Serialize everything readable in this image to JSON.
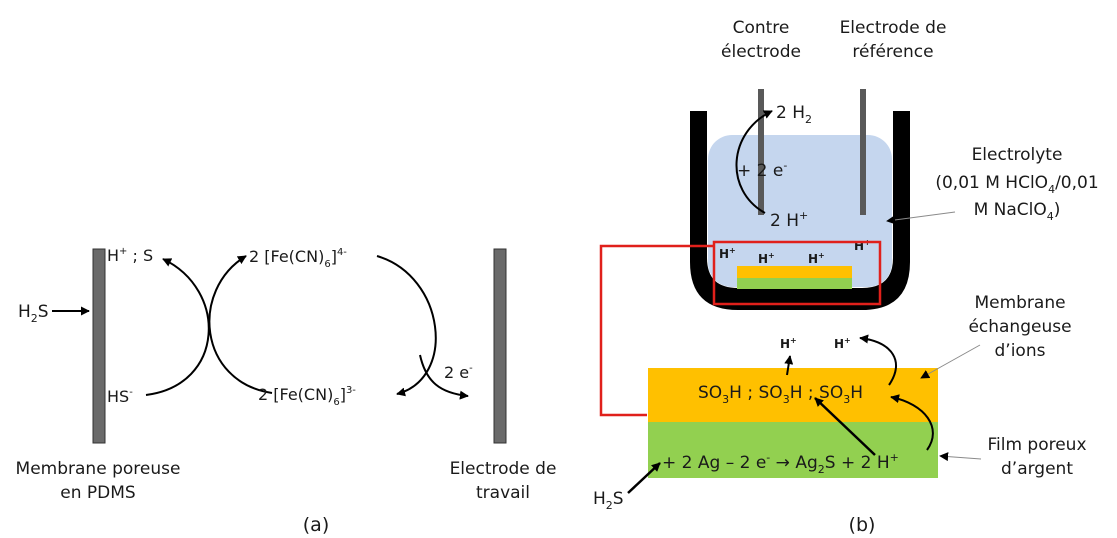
{
  "panel_a": {
    "membrane_label_line1": "Membrane poreuse",
    "membrane_label_line2": "en PDMS",
    "electrode_label_line1": "Electrode de",
    "electrode_label_line2": "travail",
    "h2s_base": "H",
    "h2s_sub": "2",
    "h2s_tail": "S",
    "hplus_s_base": "H",
    "hplus_s_sup": "+",
    "hplus_s_tail": " ; S",
    "hs_base": "HS",
    "hs_sup": "-",
    "fe4_main": "2 [Fe(CN)",
    "fe4_sub": "6",
    "fe4_close": "]",
    "fe4_sup": "4-",
    "fe3_main": "2 [Fe(CN)",
    "fe3_sub": "6",
    "fe3_close": "]",
    "fe3_sup": "3-",
    "electrons_base": "2 e",
    "electrons_sup": "-",
    "caption": "(a)"
  },
  "panel_b": {
    "counter_electrode_line1": "Contre",
    "counter_electrode_line2": "électrode",
    "ref_electrode_line1": "Electrode de",
    "ref_electrode_line2": "référence",
    "h2_base": "2 H",
    "h2_sub": "2",
    "plus2e_base": "+ 2 e",
    "plus2e_sup": "-",
    "twoHplus_base": "2 H",
    "twoHplus_sup": "+",
    "electrolyte_line1": "Electrolyte",
    "electrolyte_line2a": "(0,01 M HClO",
    "electrolyte_line2sub": "4",
    "electrolyte_line2b": "/0,01",
    "electrolyte_line3a": "M NaClO",
    "electrolyte_line3sub": "4",
    "electrolyte_line3b": ")",
    "hplus_base": "H",
    "hplus_sup": "+",
    "membrane_line1": "Membrane",
    "membrane_line2": "échangeuse",
    "membrane_line3": "d’ions",
    "so3h_a": "SO",
    "so3h_sub": "3",
    "so3h_b": "H",
    "so3h_sep": " ; ",
    "film_line1": "Film poreux",
    "film_line2": "d’argent",
    "reaction_part1": "+ 2 Ag – 2 e",
    "reaction_sup": "-",
    "reaction_arrow": " → Ag",
    "reaction_sub": "2",
    "reaction_part2": "S + 2 H",
    "reaction_sup2": "+",
    "h2s_base": "H",
    "h2s_sub": "2",
    "h2s_tail": "S",
    "caption": "(b)"
  },
  "colors": {
    "electrolyte": "#c5d6ee",
    "membrane": "#ffc000",
    "silver_film": "#92d050",
    "highlight": "#e0201b",
    "cell_wall": "#000000",
    "electrode_bar": "#595959"
  }
}
